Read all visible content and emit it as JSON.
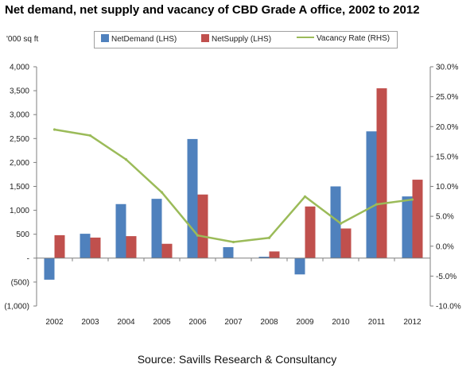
{
  "chart_data": {
    "type": "bar",
    "title": "Net demand, net supply and vacancy of CBD Grade A office, 2002 to 2012",
    "unit_label": "'000 sq ft",
    "source": "Source: Savills Research & Consultancy",
    "categories": [
      "2002",
      "2003",
      "2004",
      "2005",
      "2006",
      "2007",
      "2008",
      "2009",
      "2010",
      "2011",
      "2012"
    ],
    "series": [
      {
        "name": "NetDemand (LHS)",
        "type": "bar",
        "axis": "left",
        "color": "#4f81bd",
        "values": [
          -450,
          510,
          1130,
          1240,
          2490,
          230,
          30,
          -340,
          1500,
          2650,
          1290
        ]
      },
      {
        "name": "NetSupply (LHS)",
        "type": "bar",
        "axis": "left",
        "color": "#c0504d",
        "values": [
          480,
          430,
          460,
          300,
          1330,
          0,
          140,
          1080,
          620,
          3550,
          1640
        ]
      },
      {
        "name": "Vacancy Rate (RHS)",
        "type": "line",
        "axis": "right",
        "color": "#9bbb59",
        "values": [
          19.5,
          18.5,
          14.5,
          9.0,
          1.8,
          0.7,
          1.4,
          8.3,
          3.8,
          7.0,
          7.8
        ]
      }
    ],
    "yleft": {
      "min": -1000,
      "max": 4000,
      "step": 500,
      "tick_labels": [
        "(1,000)",
        "(500)",
        "-",
        "500",
        "1,000",
        "1,500",
        "2,000",
        "2,500",
        "3,000",
        "3,500",
        "4,000"
      ]
    },
    "yright": {
      "min": -10,
      "max": 30,
      "step": 5,
      "tick_labels": [
        "-10.0%",
        "-5.0%",
        "0.0%",
        "5.0%",
        "10.0%",
        "15.0%",
        "20.0%",
        "25.0%",
        "30.0%"
      ]
    },
    "grid": false,
    "legend_position": "top"
  }
}
